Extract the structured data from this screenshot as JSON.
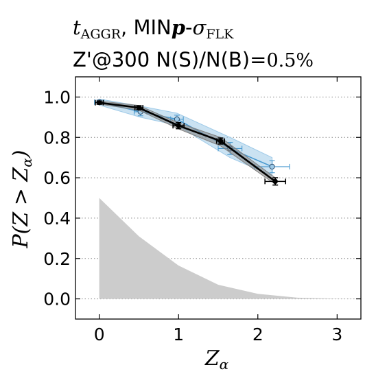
{
  "chart_data": {
    "type": "line",
    "title_lines": [
      "t_AGGR, MINp-σ_FLK",
      "Z'@300 N(S)/N(B)=0.5%"
    ],
    "title": {
      "line1": {
        "main": "t",
        "sub1": "AGGR",
        "mid": ", MIN",
        "bold": "p",
        "dash": "-",
        "sigma": "σ",
        "sub2": "FLK"
      },
      "line2": {
        "main": "Z'@300 N(S)/N(B)=",
        "value": "0.5%"
      }
    },
    "xlabel": {
      "main": "Z",
      "sub": "α"
    },
    "ylabel": {
      "main": "P(Z > Z",
      "sub": "α",
      "close": ")"
    },
    "xlim": [
      -0.3,
      3.3
    ],
    "ylim": [
      -0.1,
      1.1
    ],
    "xticks": [
      0,
      1,
      2,
      3
    ],
    "xtick_labels": [
      "0",
      "1",
      "2",
      "3"
    ],
    "yticks": [
      0.0,
      0.2,
      0.4,
      0.6,
      0.8,
      1.0
    ],
    "ytick_labels": [
      "0.0",
      "0.2",
      "0.4",
      "0.6",
      "0.8",
      "1.0"
    ],
    "grid": "horizontal dotted",
    "series": [
      {
        "style": "black",
        "color": "#000000",
        "band_color": "#808080",
        "x": [
          0.0,
          0.5,
          1.0,
          1.53,
          2.22
        ],
        "y": [
          0.972,
          0.947,
          0.858,
          0.782,
          0.582
        ],
        "xerr": [
          0.05,
          0.05,
          0.07,
          0.05,
          0.13
        ],
        "yerr": [
          0.008,
          0.01,
          0.015,
          0.015,
          0.018
        ],
        "band_low": [
          0.965,
          0.935,
          0.842,
          0.758,
          0.568
        ],
        "band_high": [
          0.98,
          0.958,
          0.872,
          0.8,
          0.6
        ]
      },
      {
        "style": "blue",
        "color": "#4a9ad0",
        "band_color": "#9ecae8",
        "x": [
          0.0,
          0.52,
          0.98,
          1.65,
          2.18
        ],
        "y": [
          0.975,
          0.927,
          0.89,
          0.745,
          0.655
        ],
        "xerr": [
          0.06,
          0.08,
          0.08,
          0.15,
          0.22
        ],
        "yerr": [
          0.01,
          0.02,
          0.02,
          0.03,
          0.03
        ],
        "band_low": [
          0.96,
          0.9,
          0.86,
          0.7,
          0.61
        ],
        "band_high": [
          0.99,
          0.955,
          0.92,
          0.8,
          0.7
        ]
      }
    ],
    "background_distribution": {
      "color": "#cccccc",
      "x": [
        0.0,
        0.5,
        1.0,
        1.5,
        2.0,
        2.5,
        3.0,
        3.3
      ],
      "y": [
        0.5,
        0.31,
        0.165,
        0.07,
        0.025,
        0.006,
        0.001,
        0.0
      ]
    }
  }
}
